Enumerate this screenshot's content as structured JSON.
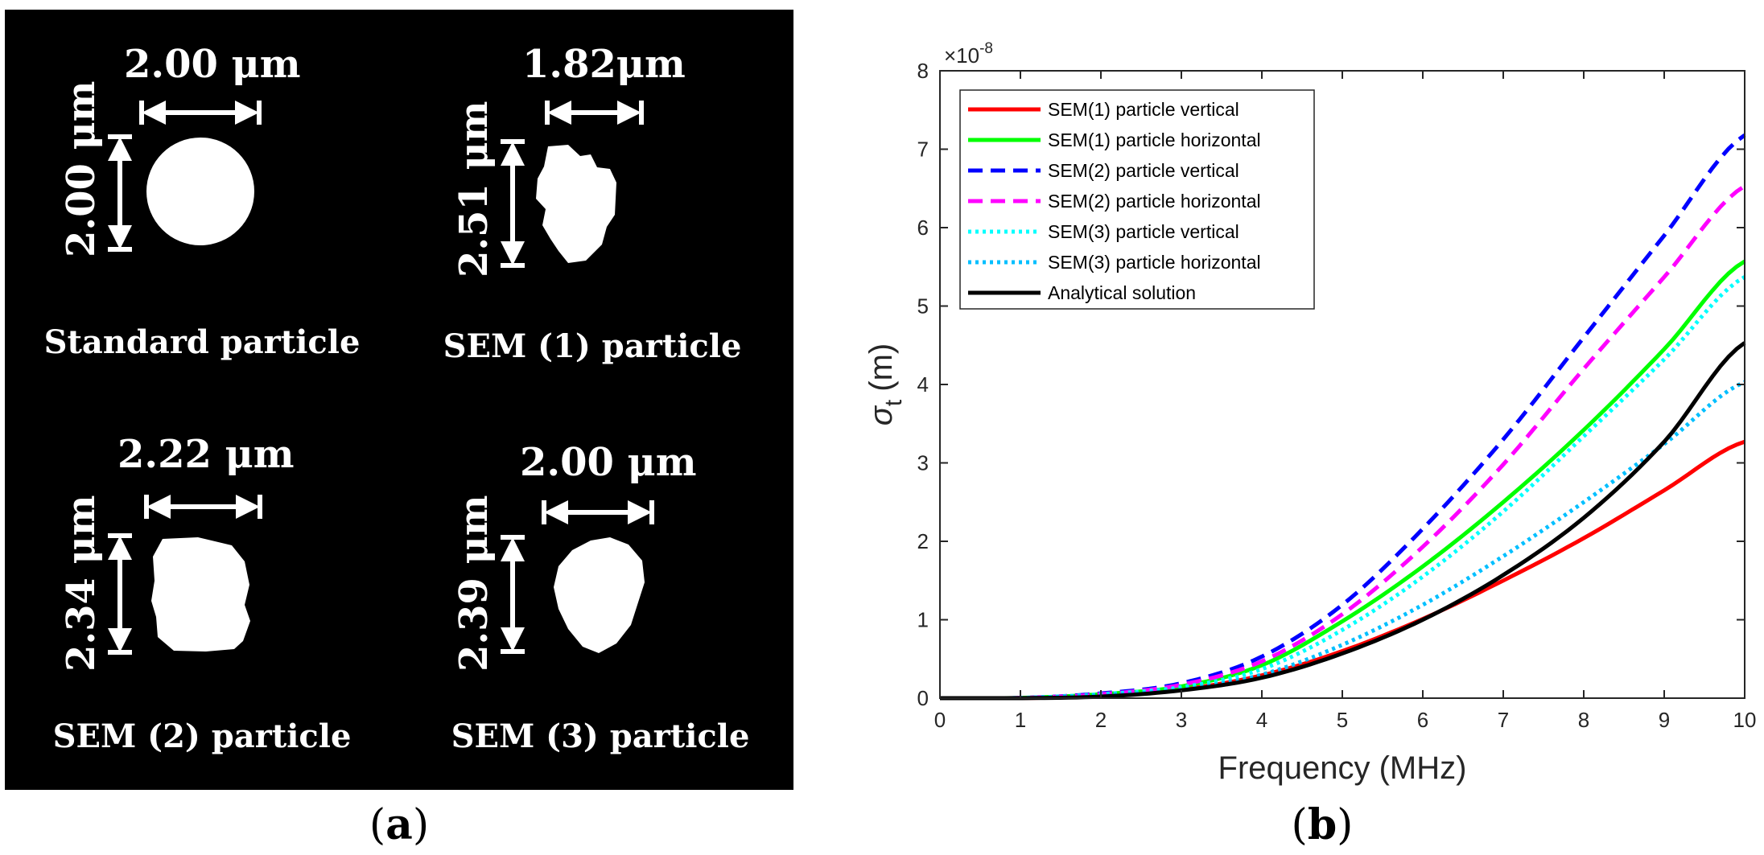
{
  "panel_a": {
    "label": "a",
    "particles": [
      {
        "name": "Standard particle",
        "width_label": "2.00 μm",
        "height_label": "2.00 μm"
      },
      {
        "name": "SEM (1) particle",
        "width_label": "1.82μm",
        "height_label": "2.51 μm"
      },
      {
        "name": "SEM (2) particle",
        "width_label": "2.22 μm",
        "height_label": "2.34 μm"
      },
      {
        "name": "SEM (3) particle",
        "width_label": "2.00 μm",
        "height_label": "2.39 μm"
      }
    ]
  },
  "panel_b": {
    "label": "b"
  },
  "colors": {
    "panel_a_bg": "#000000",
    "sem1": "#ff0000",
    "sem1h": "#00ff00",
    "sem2": "#0000ff",
    "sem2h": "#ff00ff",
    "sem3": "#00ffff",
    "sem3h": "#00bfff",
    "analytic": "#000000"
  },
  "chart_data": {
    "type": "line",
    "title": "",
    "xlabel": "Frequency (MHz)",
    "ylabel": "σ_t (m)",
    "ylabel_symbol": "σ",
    "ylabel_sub": "t",
    "ylabel_unit": "(m)",
    "y_multiplier": "×10",
    "y_multiplier_exp": "-8",
    "xlim": [
      0,
      10
    ],
    "ylim": [
      0,
      8
    ],
    "xticks": [
      "0",
      "1",
      "2",
      "3",
      "4",
      "5",
      "6",
      "7",
      "8",
      "9",
      "10"
    ],
    "yticks": [
      "0",
      "1",
      "2",
      "3",
      "4",
      "5",
      "6",
      "7",
      "8"
    ],
    "legend_position": "top-left",
    "x": [
      0,
      1,
      2,
      3,
      4,
      5,
      6,
      7,
      8,
      9,
      10
    ],
    "series": [
      {
        "name": "SEM(1) particle vertical",
        "style": "solid",
        "color": "#ff0000",
        "values": [
          0,
          0.001,
          0.03,
          0.11,
          0.29,
          0.6,
          1.01,
          1.5,
          2.04,
          2.65,
          3.27
        ]
      },
      {
        "name": "SEM(1) particle horizontal",
        "style": "solid",
        "color": "#00ff00",
        "values": [
          0,
          0.003,
          0.05,
          0.15,
          0.42,
          0.98,
          1.68,
          2.5,
          3.42,
          4.45,
          5.57
        ]
      },
      {
        "name": "SEM(2) particle vertical",
        "style": "dashed",
        "color": "#0000ff",
        "values": [
          0,
          0.003,
          0.06,
          0.19,
          0.53,
          1.19,
          2.16,
          3.3,
          4.6,
          5.9,
          7.18
        ]
      },
      {
        "name": "SEM(2) particle horizontal",
        "style": "dashed",
        "color": "#ff00ff",
        "values": [
          0,
          0.003,
          0.05,
          0.17,
          0.47,
          1.07,
          1.93,
          2.98,
          4.2,
          5.37,
          6.53
        ]
      },
      {
        "name": "SEM(3) particle vertical",
        "style": "dotted",
        "color": "#00ffff",
        "values": [
          0,
          0.003,
          0.05,
          0.14,
          0.37,
          0.87,
          1.55,
          2.38,
          3.34,
          4.32,
          5.37
        ]
      },
      {
        "name": "SEM(3) particle horizontal",
        "style": "dotted",
        "color": "#00bfff",
        "values": [
          0,
          0.002,
          0.04,
          0.11,
          0.3,
          0.68,
          1.19,
          1.81,
          2.5,
          3.24,
          4.03
        ]
      },
      {
        "name": "Analytical solution",
        "style": "solid",
        "color": "#000000",
        "values": [
          0,
          0.0005,
          0.02,
          0.1,
          0.26,
          0.57,
          1.0,
          1.57,
          2.3,
          3.27,
          4.53
        ]
      }
    ]
  }
}
